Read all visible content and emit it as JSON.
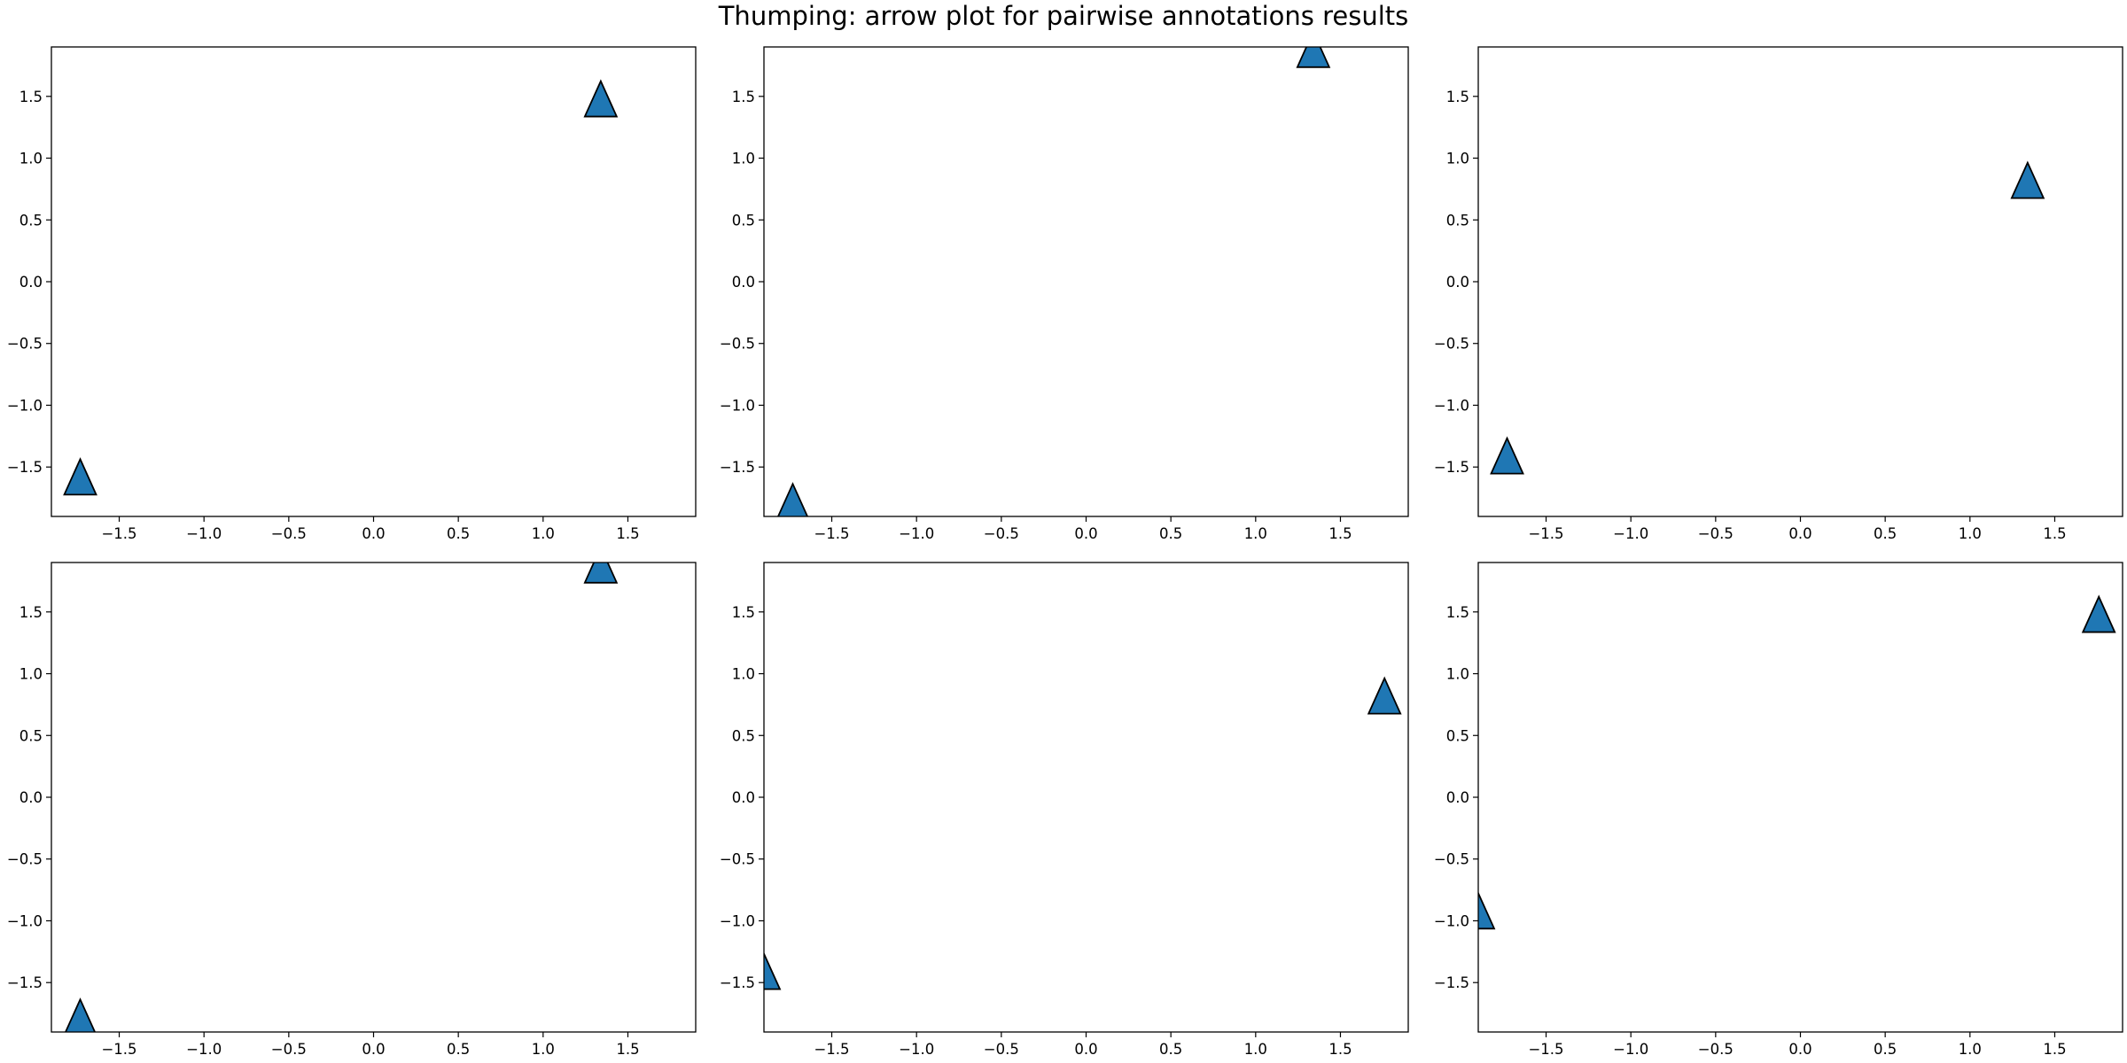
{
  "title": "Thumping: arrow plot for pairwise annotations results",
  "colors": {
    "marker_fill": "#1f77b4",
    "marker_edge": "#000000",
    "axes": "#000000"
  },
  "chart_data": [
    {
      "type": "scatter",
      "marker": "triangle-up",
      "xlim": [
        -1.9,
        1.9
      ],
      "ylim": [
        -1.9,
        1.9
      ],
      "grid": false,
      "xticks": [
        -1.5,
        -1.0,
        -0.5,
        0.0,
        0.5,
        1.0,
        1.5
      ],
      "yticks": [
        -1.5,
        -1.0,
        -0.5,
        0.0,
        0.5,
        1.0,
        1.5
      ],
      "xtick_labels": [
        "−1.5",
        "−1.0",
        "−0.5",
        "0.0",
        "0.5",
        "1.0",
        "1.5"
      ],
      "ytick_labels": [
        "−1.5",
        "−1.0",
        "−0.5",
        "0.0",
        "0.5",
        "1.0",
        "1.5"
      ],
      "points": [
        {
          "x": -1.73,
          "y": -1.58
        },
        {
          "x": 1.34,
          "y": 1.48
        }
      ]
    },
    {
      "type": "scatter",
      "marker": "triangle-up",
      "xlim": [
        -1.9,
        1.9
      ],
      "ylim": [
        -1.9,
        1.9
      ],
      "grid": false,
      "xticks": [
        -1.5,
        -1.0,
        -0.5,
        0.0,
        0.5,
        1.0,
        1.5
      ],
      "yticks": [
        -1.5,
        -1.0,
        -0.5,
        0.0,
        0.5,
        1.0,
        1.5
      ],
      "xtick_labels": [
        "−1.5",
        "−1.0",
        "−0.5",
        "0.0",
        "0.5",
        "1.0",
        "1.5"
      ],
      "ytick_labels": [
        "−1.5",
        "−1.0",
        "−0.5",
        "0.0",
        "0.5",
        "1.0",
        "1.5"
      ],
      "points": [
        {
          "x": -1.73,
          "y": -1.78
        },
        {
          "x": 1.34,
          "y": 1.88
        }
      ]
    },
    {
      "type": "scatter",
      "marker": "triangle-up",
      "xlim": [
        -1.9,
        1.9
      ],
      "ylim": [
        -1.9,
        1.9
      ],
      "grid": false,
      "xticks": [
        -1.5,
        -1.0,
        -0.5,
        0.0,
        0.5,
        1.0,
        1.5
      ],
      "yticks": [
        -1.5,
        -1.0,
        -0.5,
        0.0,
        0.5,
        1.0,
        1.5
      ],
      "xtick_labels": [
        "−1.5",
        "−1.0",
        "−0.5",
        "0.0",
        "0.5",
        "1.0",
        "1.5"
      ],
      "ytick_labels": [
        "−1.5",
        "−1.0",
        "−0.5",
        "0.0",
        "0.5",
        "1.0",
        "1.5"
      ],
      "points": [
        {
          "x": -1.73,
          "y": -1.41
        },
        {
          "x": 1.34,
          "y": 0.82
        }
      ]
    },
    {
      "type": "scatter",
      "marker": "triangle-up",
      "xlim": [
        -1.9,
        1.9
      ],
      "ylim": [
        -1.9,
        1.9
      ],
      "grid": false,
      "xticks": [
        -1.5,
        -1.0,
        -0.5,
        0.0,
        0.5,
        1.0,
        1.5
      ],
      "yticks": [
        -1.5,
        -1.0,
        -0.5,
        0.0,
        0.5,
        1.0,
        1.5
      ],
      "xtick_labels": [
        "−1.5",
        "−1.0",
        "−0.5",
        "0.0",
        "0.5",
        "1.0",
        "1.5"
      ],
      "ytick_labels": [
        "−1.5",
        "−1.0",
        "−0.5",
        "0.0",
        "0.5",
        "1.0",
        "1.5"
      ],
      "points": [
        {
          "x": -1.73,
          "y": -1.78
        },
        {
          "x": 1.34,
          "y": 1.88
        }
      ]
    },
    {
      "type": "scatter",
      "marker": "triangle-up",
      "xlim": [
        -1.9,
        1.9
      ],
      "ylim": [
        -1.9,
        1.9
      ],
      "grid": false,
      "xticks": [
        -1.5,
        -1.0,
        -0.5,
        0.0,
        0.5,
        1.0,
        1.5
      ],
      "yticks": [
        -1.5,
        -1.0,
        -0.5,
        0.0,
        0.5,
        1.0,
        1.5
      ],
      "xtick_labels": [
        "−1.5",
        "−1.0",
        "−0.5",
        "0.0",
        "0.5",
        "1.0",
        "1.5"
      ],
      "ytick_labels": [
        "−1.5",
        "−1.0",
        "−0.5",
        "0.0",
        "0.5",
        "1.0",
        "1.5"
      ],
      "points": [
        {
          "x": -1.9,
          "y": -1.41
        },
        {
          "x": 1.76,
          "y": 0.82
        }
      ]
    },
    {
      "type": "scatter",
      "marker": "triangle-up",
      "xlim": [
        -1.9,
        1.9
      ],
      "ylim": [
        -1.9,
        1.9
      ],
      "grid": false,
      "xticks": [
        -1.5,
        -1.0,
        -0.5,
        0.0,
        0.5,
        1.0,
        1.5
      ],
      "yticks": [
        -1.5,
        -1.0,
        -0.5,
        0.0,
        0.5,
        1.0,
        1.5
      ],
      "xtick_labels": [
        "−1.5",
        "−1.0",
        "−0.5",
        "0.0",
        "0.5",
        "1.0",
        "1.5"
      ],
      "ytick_labels": [
        "−1.5",
        "−1.0",
        "−0.5",
        "0.0",
        "0.5",
        "1.0",
        "1.5"
      ],
      "points": [
        {
          "x": -1.9,
          "y": -0.92
        },
        {
          "x": 1.76,
          "y": 1.48
        }
      ]
    }
  ]
}
